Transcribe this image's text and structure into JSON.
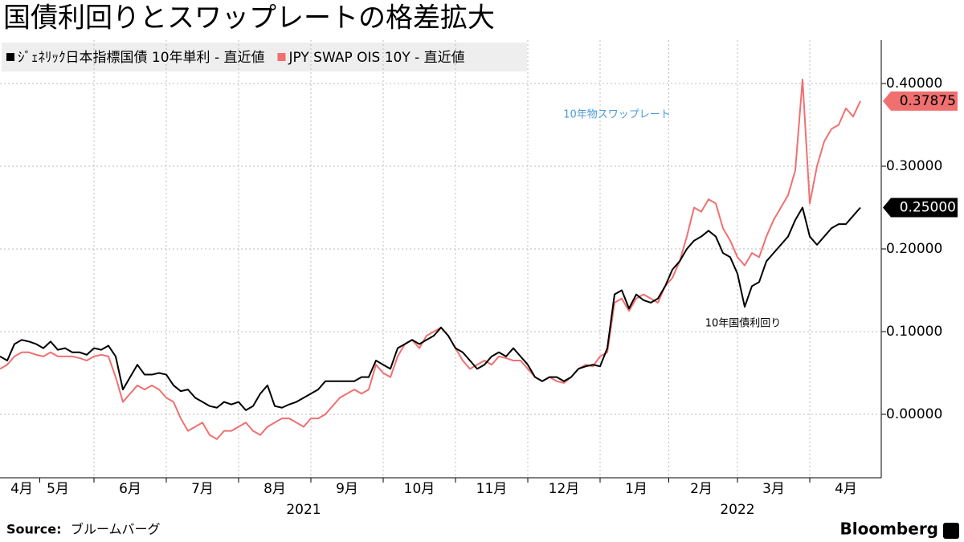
{
  "chart_data": {
    "type": "line",
    "title": "国債利回りとスワップレートの格差拡大",
    "source_label": "Source:",
    "source": "ブルームバーグ",
    "brand": "Bloomberg",
    "categories": [
      null,
      null,
      null,
      "4月",
      null,
      null,
      null,
      null,
      "5月",
      null,
      null,
      null,
      null,
      null,
      null,
      null,
      null,
      null,
      "6月",
      null,
      null,
      null,
      null,
      null,
      null,
      null,
      null,
      null,
      "7月",
      null,
      null,
      null,
      null,
      null,
      null,
      null,
      null,
      null,
      "8月",
      null,
      null,
      null,
      null,
      null,
      null,
      null,
      null,
      null,
      "9月",
      null,
      null,
      null,
      null,
      null,
      null,
      null,
      null,
      null,
      "10月",
      null,
      null,
      null,
      null,
      null,
      null,
      null,
      null,
      null,
      "11月",
      null,
      null,
      null,
      null,
      null,
      null,
      null,
      null,
      null,
      "12月",
      null,
      null,
      null,
      null,
      null,
      null,
      null,
      null,
      null,
      "1月",
      null,
      null,
      null,
      null,
      null,
      null,
      null,
      null,
      "2月",
      null,
      null,
      null,
      null,
      null,
      null,
      null,
      null,
      null,
      "3月",
      null,
      null,
      null,
      null,
      null,
      null,
      null,
      null,
      null,
      "4月",
      null,
      null
    ],
    "year_labels": [
      {
        "value": 42,
        "label": "2021"
      },
      {
        "value": 102,
        "label": "2022"
      }
    ],
    "series": [
      {
        "name": "ｼﾞｪﾈﾘｯｸ日本指標国債 10年単利 - 直近値",
        "color": "#000000",
        "end_label": "0.25000",
        "annotation": "10年国債利回り",
        "values": [
          0.07,
          0.065,
          0.085,
          0.09,
          0.088,
          0.085,
          0.08,
          0.088,
          0.078,
          0.08,
          0.075,
          0.075,
          0.072,
          0.08,
          0.078,
          0.083,
          0.07,
          0.03,
          0.045,
          0.06,
          0.048,
          0.048,
          0.05,
          0.048,
          0.035,
          0.028,
          0.03,
          0.02,
          0.015,
          0.01,
          0.008,
          0.015,
          0.012,
          0.015,
          0.005,
          0.01,
          0.025,
          0.035,
          0.01,
          0.008,
          0.012,
          0.015,
          0.02,
          0.025,
          0.03,
          0.04,
          0.04,
          0.04,
          0.04,
          0.04,
          0.045,
          0.045,
          0.065,
          0.06,
          0.055,
          0.08,
          0.085,
          0.09,
          0.085,
          0.09,
          0.095,
          0.105,
          0.095,
          0.08,
          0.075,
          0.065,
          0.055,
          0.06,
          0.07,
          0.075,
          0.07,
          0.08,
          0.07,
          0.06,
          0.045,
          0.04,
          0.045,
          0.045,
          0.04,
          0.045,
          0.055,
          0.058,
          0.06,
          0.058,
          0.08,
          0.145,
          0.15,
          0.128,
          0.145,
          0.138,
          0.135,
          0.14,
          0.155,
          0.175,
          0.185,
          0.2,
          0.21,
          0.215,
          0.222,
          0.215,
          0.195,
          0.19,
          0.17,
          0.13,
          0.155,
          0.16,
          0.185,
          0.195,
          0.205,
          0.215,
          0.235,
          0.25,
          0.215,
          0.205,
          0.215,
          0.225,
          0.23,
          0.23,
          0.24,
          0.25
        ]
      },
      {
        "name": "JPY SWAP OIS 10Y - 直近値",
        "color": "#f07070",
        "end_label": "0.37875",
        "annotation": "10年物スワップレート",
        "values": [
          0.055,
          0.06,
          0.07,
          0.075,
          0.075,
          0.072,
          0.07,
          0.075,
          0.07,
          0.07,
          0.07,
          0.068,
          0.065,
          0.07,
          0.072,
          0.07,
          0.045,
          0.015,
          0.025,
          0.035,
          0.03,
          0.035,
          0.03,
          0.02,
          0.015,
          -0.005,
          -0.02,
          -0.015,
          -0.01,
          -0.025,
          -0.03,
          -0.02,
          -0.02,
          -0.015,
          -0.01,
          -0.02,
          -0.025,
          -0.015,
          -0.01,
          -0.005,
          -0.005,
          -0.01,
          -0.015,
          -0.005,
          -0.005,
          0.0,
          0.01,
          0.02,
          0.025,
          0.03,
          0.025,
          0.03,
          0.06,
          0.05,
          0.045,
          0.07,
          0.085,
          0.09,
          0.08,
          0.095,
          0.1,
          0.105,
          0.095,
          0.08,
          0.065,
          0.055,
          0.06,
          0.065,
          0.06,
          0.07,
          0.068,
          0.065,
          0.065,
          0.055,
          0.045,
          0.04,
          0.045,
          0.04,
          0.038,
          0.045,
          0.055,
          0.06,
          0.058,
          0.07,
          0.075,
          0.135,
          0.14,
          0.125,
          0.14,
          0.145,
          0.14,
          0.135,
          0.155,
          0.165,
          0.185,
          0.215,
          0.25,
          0.245,
          0.26,
          0.255,
          0.225,
          0.21,
          0.19,
          0.18,
          0.195,
          0.19,
          0.215,
          0.235,
          0.25,
          0.265,
          0.295,
          0.405,
          0.255,
          0.3,
          0.33,
          0.345,
          0.35,
          0.37,
          0.36,
          0.37875
        ]
      }
    ],
    "ylim": [
      -0.05,
      0.45
    ],
    "yticks": [
      {
        "value": 0,
        "label": "0.00000"
      },
      {
        "value": 0.1,
        "label": "0.10000"
      },
      {
        "value": 0.2,
        "label": "0.20000"
      },
      {
        "value": 0.3,
        "label": "0.30000"
      },
      {
        "value": 0.4,
        "label": "0.40000"
      }
    ],
    "grid": true
  }
}
